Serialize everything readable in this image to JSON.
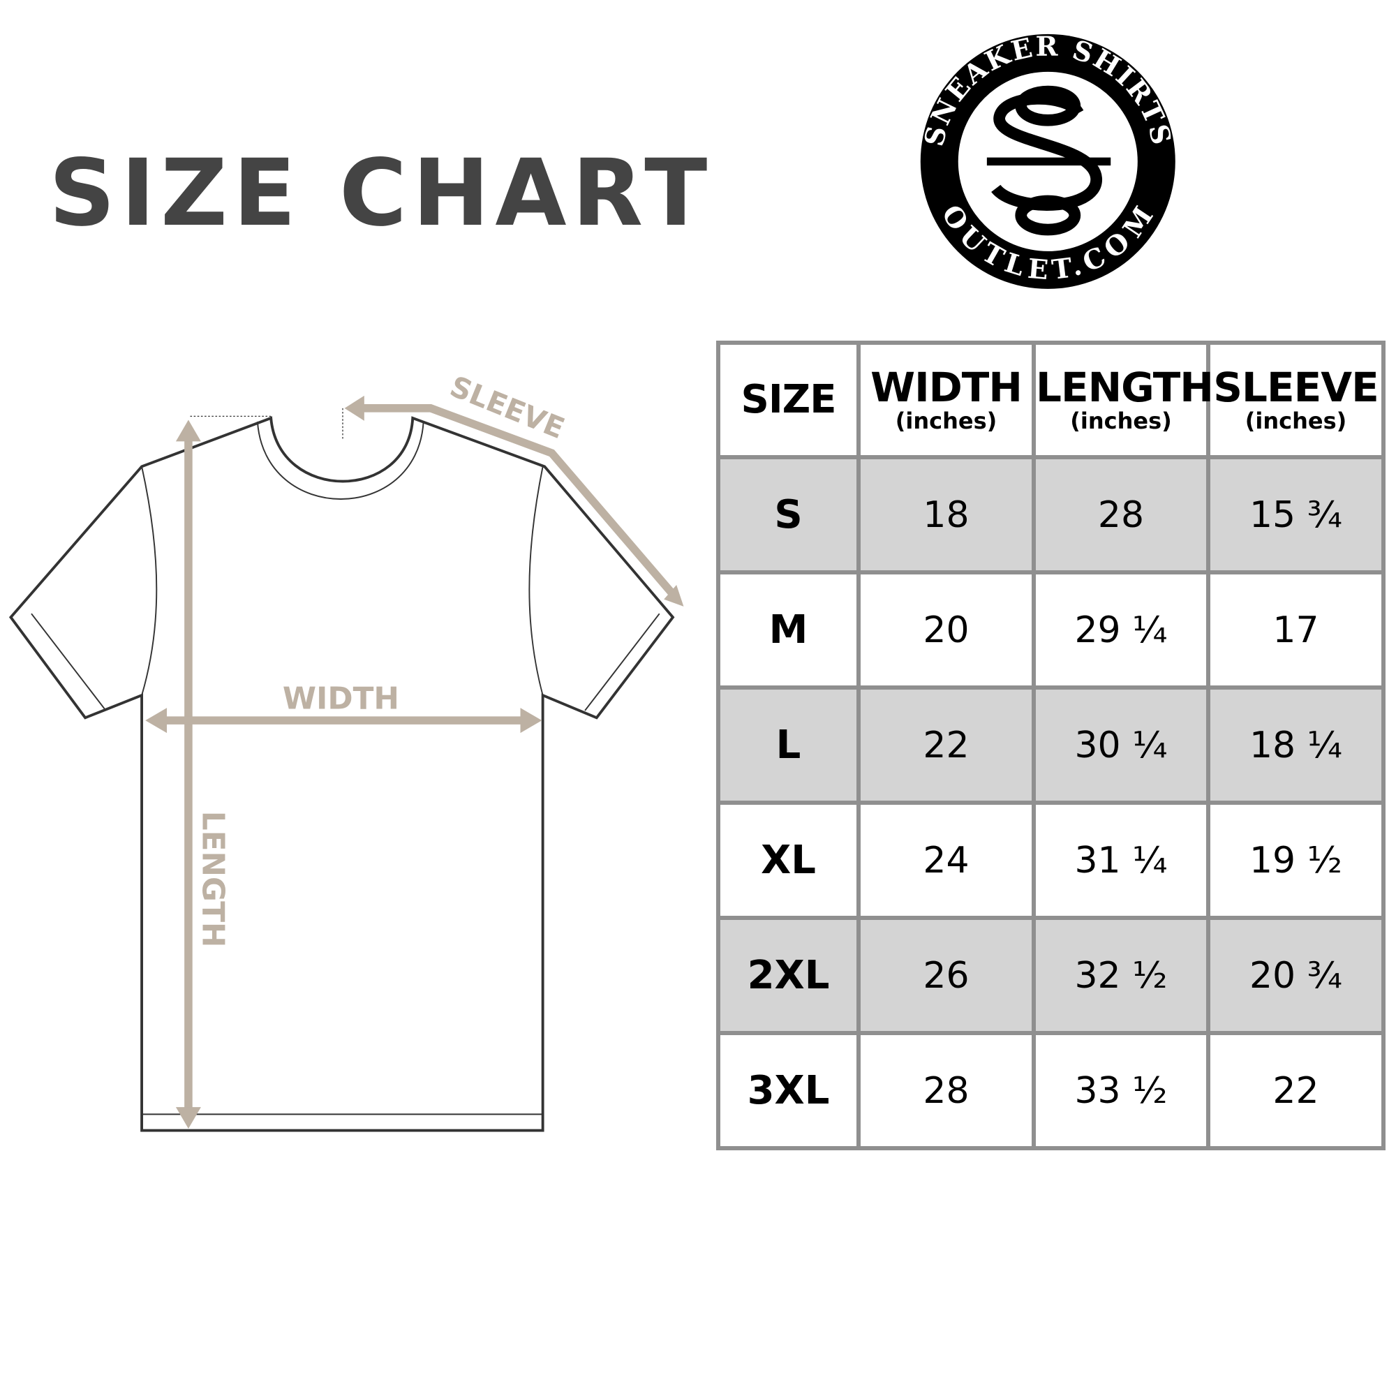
{
  "title": "SIZE CHART",
  "logo": {
    "top_text": "SNEAKER SHIRTS",
    "bottom_text": "OUTLET.COM",
    "monogram": "SO"
  },
  "diagram": {
    "sleeve_label": "SLEEVE",
    "width_label": "WIDTH",
    "length_label": "LENGTH",
    "arrow_color": "#bdb1a3"
  },
  "table": {
    "headers": [
      {
        "label": "SIZE",
        "unit": ""
      },
      {
        "label": "WIDTH",
        "unit": "(inches)"
      },
      {
        "label": "LENGTH",
        "unit": "(inches)"
      },
      {
        "label": "SLEEVE",
        "unit": "(inches)"
      }
    ],
    "rows": [
      [
        "S",
        "18",
        "28",
        "15 ¾"
      ],
      [
        "M",
        "20",
        "29 ¼",
        "17"
      ],
      [
        "L",
        "22",
        "30 ¼",
        "18 ¼"
      ],
      [
        "XL",
        "24",
        "31 ¼",
        "19 ½"
      ],
      [
        "2XL",
        "26",
        "32 ½",
        "20 ¾"
      ],
      [
        "3XL",
        "28",
        "33 ½",
        "22"
      ]
    ],
    "shade_color": "#d4d4d4",
    "border_color": "#8f8f8f"
  }
}
